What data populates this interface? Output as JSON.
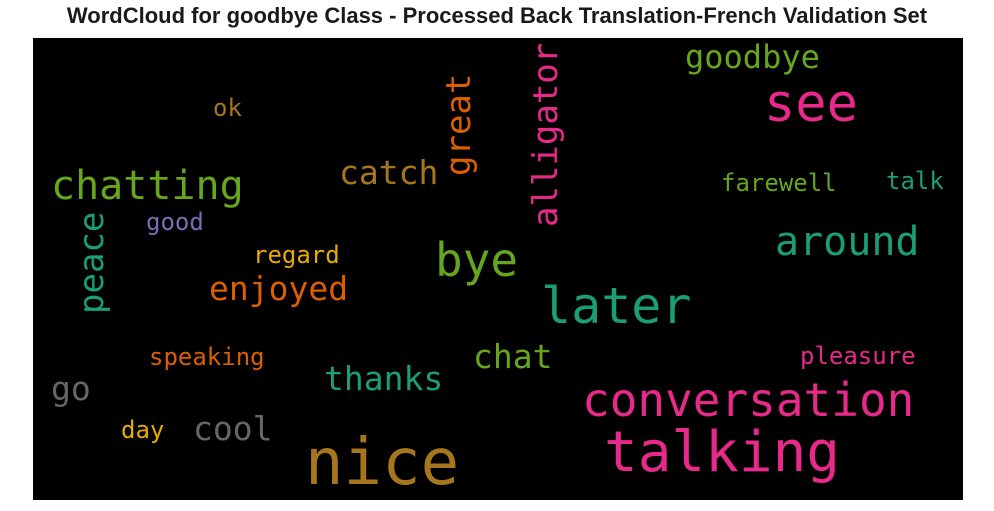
{
  "title": "WordCloud for goodbye Class - Processed Back Translation-French Validation Set",
  "words": {
    "nice": {
      "text": "nice",
      "color": "#a6761d"
    },
    "talking": {
      "text": "talking",
      "color": "#e7298a"
    },
    "conversation": {
      "text": "conversation",
      "color": "#e7298a"
    },
    "later": {
      "text": "later",
      "color": "#1b9e77"
    },
    "see": {
      "text": "see",
      "color": "#e7298a"
    },
    "bye": {
      "text": "bye",
      "color": "#66a61e"
    },
    "chatting": {
      "text": "chatting",
      "color": "#66a61e"
    },
    "around": {
      "text": "around",
      "color": "#1b9e77"
    },
    "goodbye": {
      "text": "goodbye",
      "color": "#66a61e"
    },
    "alligator": {
      "text": "alligator",
      "color": "#e7298a"
    },
    "great": {
      "text": "great",
      "color": "#d95f02"
    },
    "catch": {
      "text": "catch",
      "color": "#a6761d"
    },
    "enjoyed": {
      "text": "enjoyed",
      "color": "#d95f02"
    },
    "chat": {
      "text": "chat",
      "color": "#66a61e"
    },
    "thanks": {
      "text": "thanks",
      "color": "#1b9e77"
    },
    "peace": {
      "text": "peace",
      "color": "#1b9e77"
    },
    "cool": {
      "text": "cool",
      "color": "#666666"
    },
    "go": {
      "text": "go",
      "color": "#666666"
    },
    "pleasure": {
      "text": "pleasure",
      "color": "#e7298a"
    },
    "farewell": {
      "text": "farewell",
      "color": "#66a61e"
    },
    "talk": {
      "text": "talk",
      "color": "#1b9e77"
    },
    "speaking": {
      "text": "speaking",
      "color": "#d95f02"
    },
    "regard": {
      "text": "regard",
      "color": "#e6ab02"
    },
    "good": {
      "text": "good",
      "color": "#7570b3"
    },
    "ok": {
      "text": "ok",
      "color": "#a6761d"
    },
    "day": {
      "text": "day",
      "color": "#e6ab02"
    }
  }
}
